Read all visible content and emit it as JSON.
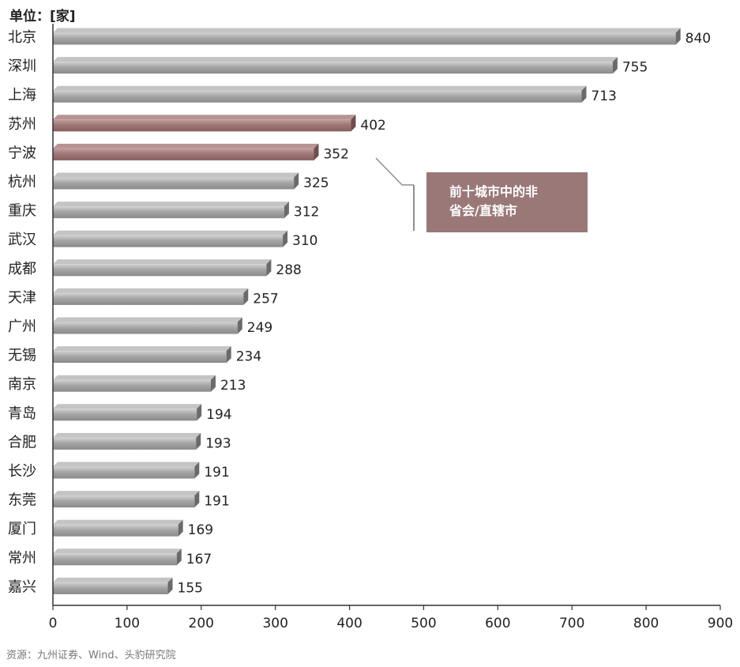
{
  "unit_label": "单位：[家]",
  "source": "资源：九州证券、Wind、头豹研究院",
  "callout": {
    "line1": "前十城市中的非",
    "line2": "省会/直辖市"
  },
  "colors": {
    "bar_gray": "#9c9c9c",
    "bar_highlight": "#9b7878",
    "callout_bg": "#9b7878"
  },
  "chart_data": {
    "type": "bar",
    "orientation": "horizontal",
    "categories": [
      "北京",
      "深圳",
      "上海",
      "苏州",
      "宁波",
      "杭州",
      "重庆",
      "武汉",
      "成都",
      "天津",
      "广州",
      "无锡",
      "南京",
      "青岛",
      "合肥",
      "长沙",
      "东莞",
      "厦门",
      "常州",
      "嘉兴"
    ],
    "values": [
      840,
      755,
      713,
      402,
      352,
      325,
      312,
      310,
      288,
      257,
      249,
      234,
      213,
      194,
      193,
      191,
      191,
      169,
      167,
      155
    ],
    "highlighted": [
      "苏州",
      "宁波"
    ],
    "xlim": [
      0,
      900
    ],
    "xticks": [
      0,
      100,
      200,
      300,
      400,
      500,
      600,
      700,
      800,
      900
    ],
    "data_labels": true,
    "grid": false,
    "legend": false
  }
}
